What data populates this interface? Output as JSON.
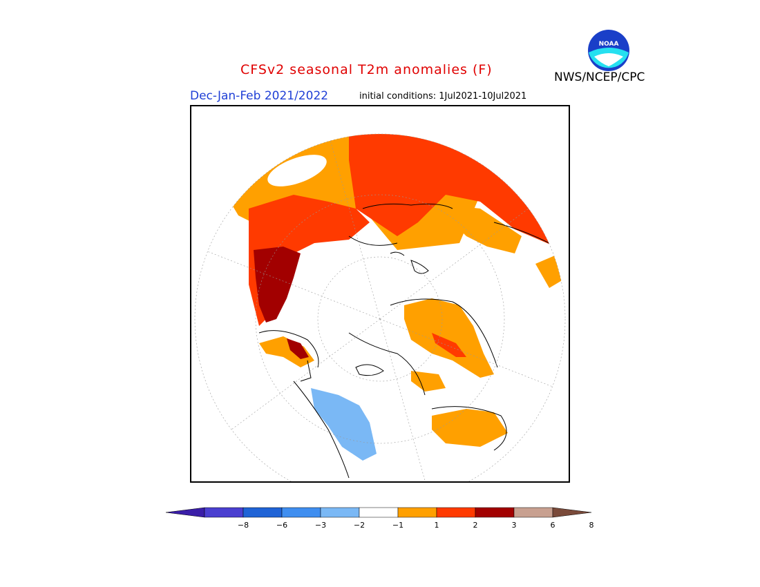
{
  "header": {
    "title": "CFSv2 seasonal T2m anomalies (F)",
    "agency": "NWS/NCEP/CPC",
    "season": "Dec-Jan-Feb 2021/2022",
    "initial_conditions": "initial conditions: 1Jul2021-10Jul2021",
    "logo_text": "NOAA"
  },
  "colorbar": {
    "ticks": [
      "−8",
      "−6",
      "−3",
      "−2",
      "−1",
      "1",
      "2",
      "3",
      "6",
      "8"
    ],
    "colors": [
      "#3a1ea8",
      "#4a3fd0",
      "#1f63d6",
      "#3f8ef0",
      "#7ab8f5",
      "#ffffff",
      "#ffa000",
      "#ff3a00",
      "#a20000",
      "#c8a090",
      "#7a4a3a"
    ]
  },
  "map": {
    "projection": "north polar stereographic",
    "anomaly_colors": {
      "warm_1_2": "#ffa000",
      "warm_2_3": "#ff3a00",
      "warm_3_6": "#a20000",
      "cool_-2_-1": "#7ab8f5",
      "neutral": "#ffffff"
    }
  }
}
